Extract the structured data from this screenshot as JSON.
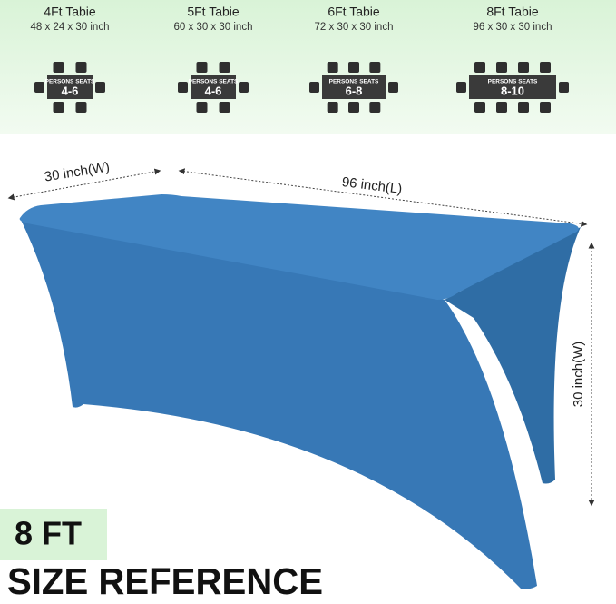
{
  "tables": [
    {
      "name": "4Ft Tabie",
      "dimensions": "48 x 24 x 30 inch",
      "seats_label": "PERSONS SEATS",
      "seats": "4-6"
    },
    {
      "name": "5Ft Tabie",
      "dimensions": "60 x 30 x 30 inch",
      "seats_label": "PERSONS SEATS",
      "seats": "4-6"
    },
    {
      "name": "6Ft Tabie",
      "dimensions": "72 x 30 x 30 inch",
      "seats_label": "PERSONS SEATS",
      "seats": "6-8"
    },
    {
      "name": "8Ft Tabie",
      "dimensions": "96 x 30 x 30 inch",
      "seats_label": "PERSONS SEATS",
      "seats": "8-10"
    }
  ],
  "measurements": {
    "width": "30 inch(W)",
    "length": "96 inch(L)",
    "height": "30 inch(W)"
  },
  "badge": "8 FT",
  "caption": "SIZE REFERENCE"
}
